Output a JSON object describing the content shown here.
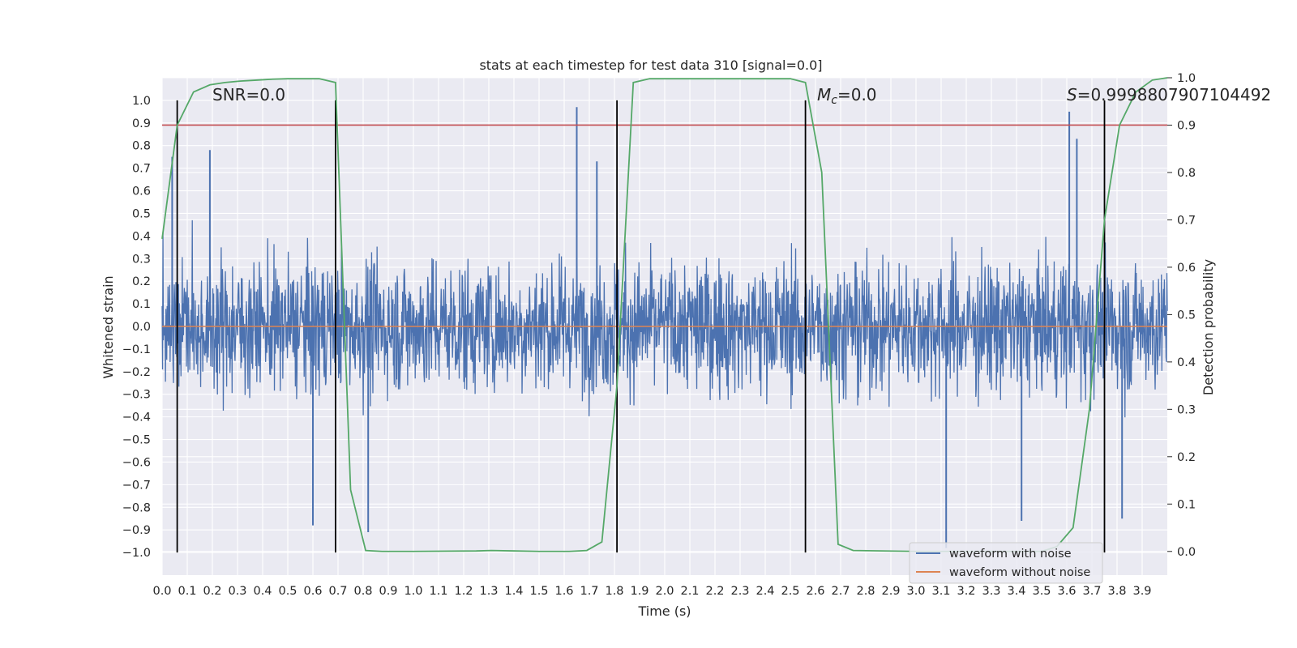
{
  "chart_data": {
    "type": "line",
    "title": "stats at each timestep for test data 310 [signal=0.0]",
    "xlabel": "Time (s)",
    "ylabel": "Whitened strain",
    "y2label": "Detection probability",
    "xlim": [
      0.0,
      4.0
    ],
    "ylim": [
      -1.1,
      1.1
    ],
    "y2lim": [
      -0.05,
      1.0
    ],
    "x_ticks": [
      "0.0",
      "0.1",
      "0.2",
      "0.3",
      "0.4",
      "0.5",
      "0.6",
      "0.7",
      "0.8",
      "0.9",
      "1.0",
      "1.1",
      "1.2",
      "1.3",
      "1.4",
      "1.5",
      "1.6",
      "1.7",
      "1.8",
      "1.9",
      "2.0",
      "2.1",
      "2.2",
      "2.3",
      "2.4",
      "2.5",
      "2.6",
      "2.7",
      "2.8",
      "2.9",
      "3.0",
      "3.1",
      "3.2",
      "3.3",
      "3.4",
      "3.5",
      "3.6",
      "3.7",
      "3.8",
      "3.9"
    ],
    "y_ticks": [
      "1.0",
      "0.9",
      "0.8",
      "0.7",
      "0.6",
      "0.5",
      "0.4",
      "0.3",
      "0.2",
      "0.1",
      "0.0",
      "−0.1",
      "−0.2",
      "−0.3",
      "−0.4",
      "−0.5",
      "−0.6",
      "−0.7",
      "−0.8",
      "−0.9",
      "−1.0"
    ],
    "y2_ticks": [
      "1.0",
      "0.9",
      "0.8",
      "0.7",
      "0.6",
      "0.5",
      "0.4",
      "0.3",
      "0.2",
      "0.1",
      "0.0"
    ],
    "grid": true,
    "legend_placement": "lower-right",
    "annotations": {
      "snr": "SNR=0.0",
      "mc_symbol": "M",
      "mc_sub": "c",
      "mc_value": "=0.0",
      "s_symbol": "S",
      "s_value": "=0.9998807907104492"
    },
    "series": [
      {
        "name": "waveform with noise",
        "color": "#4c72b0",
        "axis": "left",
        "style": "dense-noise",
        "amplitude_typical": 0.45,
        "peaks": [
          [
            0.04,
            0.75
          ],
          [
            0.19,
            0.78
          ],
          [
            0.6,
            -0.88
          ],
          [
            0.82,
            -0.91
          ],
          [
            1.65,
            0.97
          ],
          [
            1.73,
            0.73
          ],
          [
            3.12,
            -0.98
          ],
          [
            3.61,
            0.95
          ],
          [
            3.64,
            0.83
          ],
          [
            3.42,
            -0.86
          ],
          [
            3.82,
            -0.85
          ]
        ]
      },
      {
        "name": "waveform without noise",
        "color": "#dd8452",
        "axis": "left",
        "x": [
          0.0,
          4.0
        ],
        "values": [
          0.0,
          0.0
        ]
      },
      {
        "name": "detection probability",
        "color": "#55a868",
        "axis": "right",
        "x": [
          0.0,
          0.06,
          0.125,
          0.19,
          0.25,
          0.31,
          0.375,
          0.44,
          0.5,
          0.56,
          0.625,
          0.69,
          0.75,
          0.81,
          0.875,
          1.0,
          1.25,
          1.31,
          1.5,
          1.62,
          1.69,
          1.75,
          1.81,
          1.875,
          1.94,
          2.0,
          2.25,
          2.5,
          2.56,
          2.625,
          2.69,
          2.75,
          3.0,
          3.25,
          3.5,
          3.56,
          3.625,
          3.69,
          3.75,
          3.81,
          3.875,
          3.94,
          4.0
        ],
        "values": [
          0.66,
          0.9,
          0.97,
          0.985,
          0.99,
          0.993,
          0.995,
          0.997,
          0.998,
          0.998,
          0.998,
          0.99,
          0.13,
          0.002,
          0.0,
          0.0,
          0.001,
          0.002,
          0.0,
          0.0,
          0.002,
          0.02,
          0.35,
          0.99,
          0.998,
          0.998,
          0.998,
          0.998,
          0.99,
          0.8,
          0.015,
          0.002,
          0.0,
          0.0,
          0.0,
          0.01,
          0.05,
          0.3,
          0.7,
          0.9,
          0.97,
          0.995,
          1.0
        ]
      }
    ],
    "reference_lines": {
      "threshold": {
        "axis": "right",
        "value": 0.9,
        "color": "#c44e52"
      },
      "segment_markers": {
        "axis": "left",
        "color": "#000000",
        "x": [
          0.06,
          0.69,
          1.81,
          2.56,
          3.75
        ],
        "y_range": [
          -1.0,
          1.0
        ]
      }
    }
  }
}
